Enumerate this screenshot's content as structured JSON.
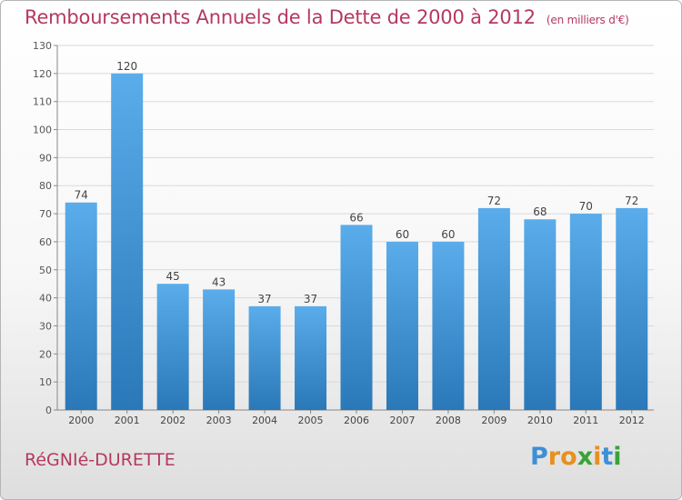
{
  "header": {
    "title": "Remboursements Annuels de la Dette de 2000 à 2012",
    "subtitle": "(en milliers d'€)"
  },
  "footer": {
    "commune": "RéGNIé-DURETTE",
    "brand_letters": [
      {
        "char": "P",
        "color": "#3d8fd6"
      },
      {
        "char": "r",
        "color": "#e8901d"
      },
      {
        "char": "o",
        "color": "#e8901d"
      },
      {
        "char": "x",
        "color": "#3aa336"
      },
      {
        "char": "i",
        "color": "#e8901d"
      },
      {
        "char": "t",
        "color": "#3d8fd6"
      },
      {
        "char": "i",
        "color": "#3aa336"
      }
    ]
  },
  "colors": {
    "accent": "#b5395e",
    "bar_top": "#5aacea",
    "bar_bottom": "#2a78b8"
  },
  "chart_data": {
    "type": "bar",
    "categories": [
      "2000",
      "2001",
      "2002",
      "2003",
      "2004",
      "2005",
      "2006",
      "2007",
      "2008",
      "2009",
      "2010",
      "2011",
      "2012"
    ],
    "values": [
      74,
      120,
      45,
      43,
      37,
      37,
      66,
      60,
      60,
      72,
      68,
      70,
      72
    ],
    "ylim": [
      0,
      130
    ],
    "yticks": [
      0,
      10,
      20,
      30,
      40,
      50,
      60,
      70,
      80,
      90,
      100,
      110,
      120,
      130
    ],
    "grid": true,
    "legend": "none"
  }
}
